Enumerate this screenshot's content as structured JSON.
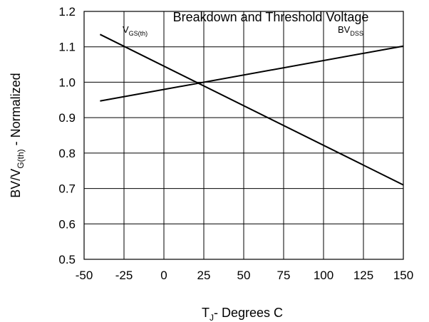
{
  "chart_data": {
    "type": "line",
    "title": "Breakdown and Threshold Voltage",
    "xlabel_main": "T",
    "xlabel_sub": "J",
    "xlabel_rest": "- Degrees C",
    "ylabel_main": "BV/V",
    "ylabel_sub": "G(th)",
    "ylabel_rest": " - Normalized",
    "xlim": [
      -50,
      150
    ],
    "ylim": [
      0.5,
      1.2
    ],
    "xticks": [
      "-50",
      "-25",
      "0",
      "25",
      "50",
      "75",
      "100",
      "125",
      "150"
    ],
    "yticks": [
      "0.5",
      "0.6",
      "0.7",
      "0.8",
      "0.9",
      "1.0",
      "1.1",
      "1.2"
    ],
    "grid": true,
    "series": [
      {
        "name_main": "V",
        "name_sub": "GS(th)",
        "x": [
          -40,
          150
        ],
        "y": [
          1.135,
          0.71
        ]
      },
      {
        "name_main": "BV",
        "name_sub": "DSS",
        "x": [
          -40,
          150
        ],
        "y": [
          0.947,
          1.102
        ]
      }
    ]
  }
}
